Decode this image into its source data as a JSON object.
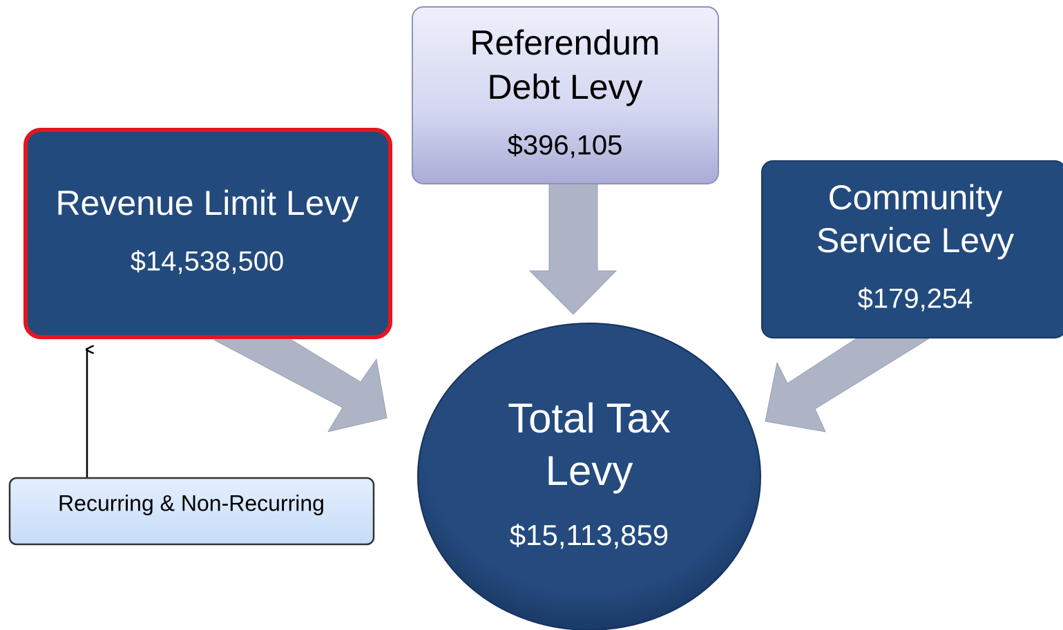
{
  "nodes": [
    {
      "label_lines": [
        "Revenue Limit Levy"
      ],
      "amount": "$14,538,500"
    },
    {
      "label_lines": [
        "Referendum",
        "Debt Levy"
      ],
      "amount": "$396,105"
    },
    {
      "label_lines": [
        "Community",
        "Service Levy"
      ],
      "amount": "$179,254"
    },
    {
      "label_lines": [
        "Total Tax",
        "Levy"
      ],
      "amount": "$15,113,859"
    }
  ],
  "note": {
    "label": "Recurring & Non-Recurring"
  }
}
